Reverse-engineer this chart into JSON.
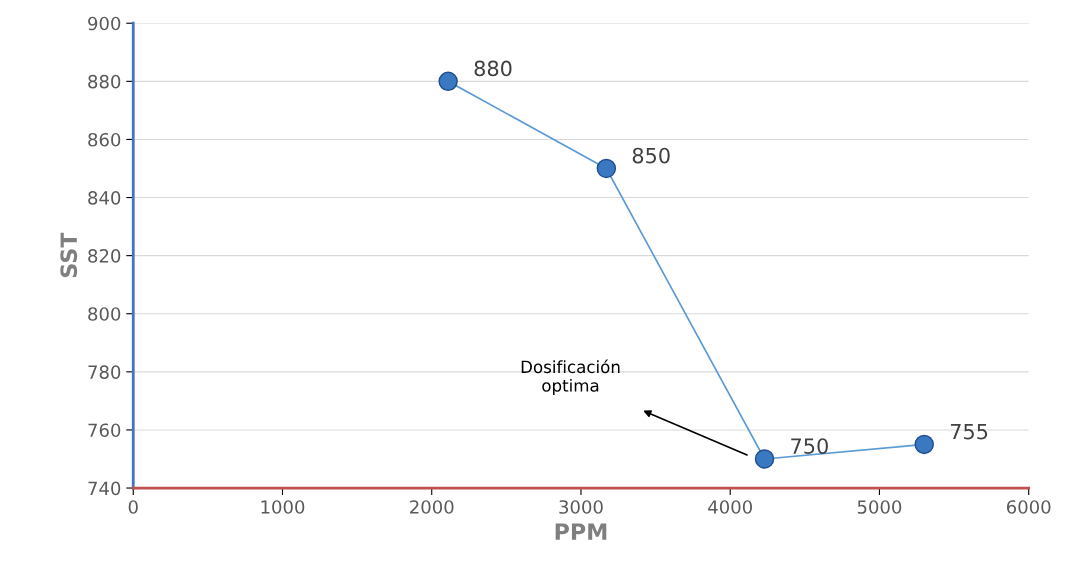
{
  "chart_data": {
    "type": "line",
    "xlabel": "PPM",
    "ylabel": "SST",
    "x": [
      2110,
      3170,
      4230,
      5300
    ],
    "series": [
      {
        "color": "#5b9bd5",
        "values": [
          880,
          850,
          750,
          755
        ]
      }
    ],
    "marker": "circle",
    "line_style": "solid",
    "data_labels": true,
    "grid": "y",
    "xlim": [
      0,
      6000
    ],
    "xticks": [
      0,
      1000,
      2000,
      3000,
      4000,
      5000,
      6000
    ],
    "ylim": [
      740,
      900
    ],
    "yticks": [
      740,
      760,
      780,
      800,
      820,
      840,
      860,
      880,
      900
    ],
    "annotations": [
      "Dosificación\noptima"
    ]
  }
}
